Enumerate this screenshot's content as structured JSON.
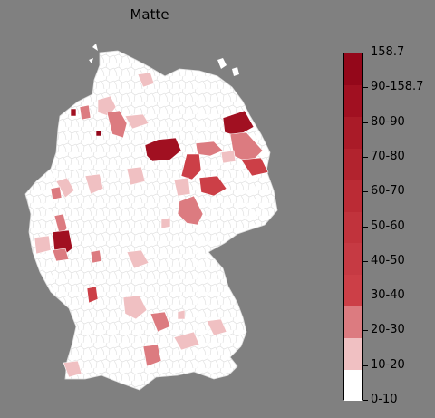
{
  "title": "Matte",
  "legend": {
    "labels": [
      "158.7",
      "90-158.7",
      "80-90",
      "70-80",
      "60-70",
      "50-60",
      "40-50",
      "30-40",
      "20-30",
      "10-20",
      "0-10"
    ],
    "colors": [
      "#ffffff",
      "#f0c0c2",
      "#dc7b80",
      "#cc3f47",
      "#c63a43",
      "#c1333c",
      "#bb2b35",
      "#b2232e",
      "#aa1b28",
      "#a11021",
      "#94071a"
    ]
  },
  "map": {
    "base_color": "#ffffff",
    "border_color": "#d9d9d9",
    "highlighted_regions": [
      {
        "color": "#f0c0c2"
      },
      {
        "color": "#f0c0c2"
      },
      {
        "color": "#dc7b80"
      },
      {
        "color": "#f0c0c2"
      },
      {
        "color": "#dc7b80"
      },
      {
        "color": "#a11021"
      },
      {
        "color": "#94071a"
      },
      {
        "color": "#a11021"
      },
      {
        "color": "#dc7b80"
      },
      {
        "color": "#cc3f47"
      },
      {
        "color": "#a11021"
      },
      {
        "color": "#dc7b80"
      },
      {
        "color": "#cc3f47"
      },
      {
        "color": "#f0c0c2"
      },
      {
        "color": "#f0c0c2"
      },
      {
        "color": "#cc3f47"
      },
      {
        "color": "#f0c0c2"
      },
      {
        "color": "#f0c0c2"
      },
      {
        "color": "#dc7b80"
      },
      {
        "color": "#f0c0c2"
      },
      {
        "color": "#dc7b80"
      },
      {
        "color": "#f0c0c2"
      },
      {
        "color": "#dc7b80"
      },
      {
        "color": "#a11021"
      },
      {
        "color": "#f0c0c2"
      },
      {
        "color": "#dc7b80"
      },
      {
        "color": "#f0c0c2"
      },
      {
        "color": "#dc7b80"
      },
      {
        "color": "#cc3f47"
      },
      {
        "color": "#f0c0c2"
      },
      {
        "color": "#dc7b80"
      },
      {
        "color": "#f0c0c2"
      }
    ]
  }
}
